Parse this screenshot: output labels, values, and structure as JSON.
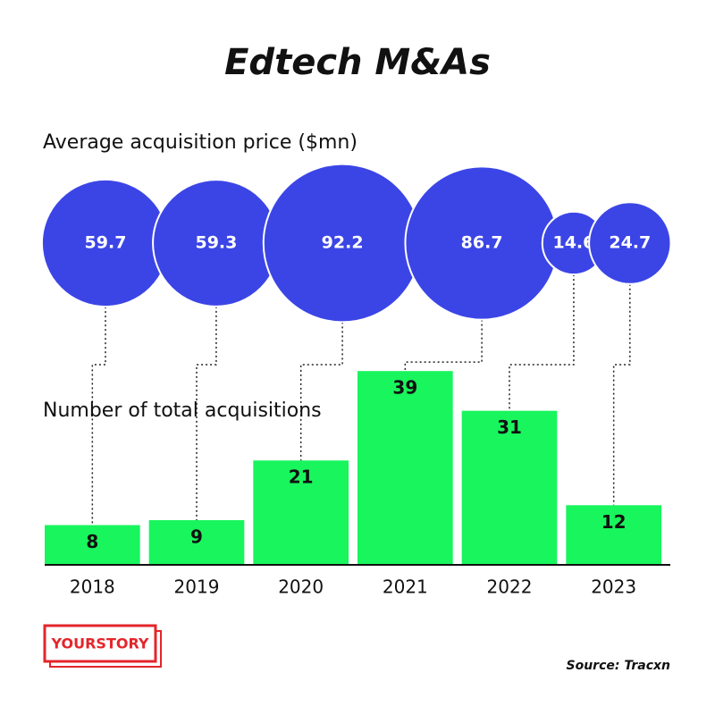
{
  "title": "Edtech M&As",
  "logo": "YOURSTORY",
  "source": "Source: Tracxn",
  "chart_data": [
    {
      "type": "bubble",
      "title": "Average acquisition price ($mn)",
      "values": [
        59.7,
        59.3,
        92.2,
        86.7,
        14.6,
        24.7
      ],
      "color": "#3b45e6"
    },
    {
      "type": "bar",
      "title": "Number of total acquisitions",
      "categories": [
        "2018",
        "2019",
        "2020",
        "2021",
        "2022",
        "2023"
      ],
      "values": [
        8,
        9,
        21,
        39,
        31,
        12
      ],
      "color": "#19f55d"
    }
  ]
}
